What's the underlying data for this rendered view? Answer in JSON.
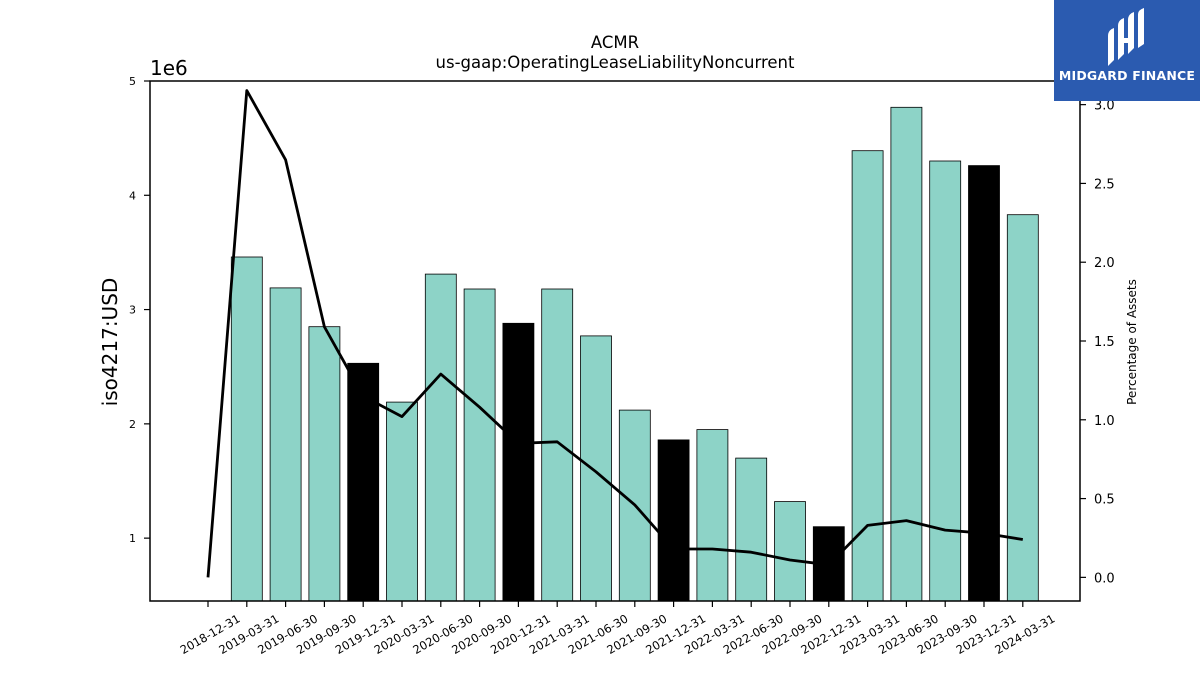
{
  "chart_data": {
    "type": "bar",
    "title": "ACMR",
    "subtitle": "us-gaap:OperatingLeaseLiabilityNoncurrent",
    "ylabel": "iso4217:USD",
    "y_offset_label": "1e6",
    "y2label": "Percentage of Assets",
    "categories": [
      "2018-12-31",
      "2019-03-31",
      "2019-06-30",
      "2019-09-30",
      "2019-12-31",
      "2020-03-31",
      "2020-06-30",
      "2020-09-30",
      "2020-12-31",
      "2021-03-31",
      "2021-06-30",
      "2021-09-30",
      "2021-12-31",
      "2022-03-31",
      "2022-06-30",
      "2022-09-30",
      "2022-12-31",
      "2023-03-31",
      "2023-06-30",
      "2023-09-30",
      "2023-12-31",
      "2024-03-31"
    ],
    "series": [
      {
        "values": [
          null,
          3.46,
          3.19,
          2.85,
          2.53,
          2.19,
          3.31,
          3.18,
          2.88,
          3.18,
          2.77,
          2.12,
          1.86,
          1.95,
          1.7,
          1.32,
          1.1,
          4.39,
          4.77,
          4.3,
          4.26,
          3.83
        ],
        "highlight": [
          false,
          false,
          false,
          false,
          true,
          false,
          false,
          false,
          true,
          false,
          false,
          false,
          true,
          false,
          false,
          false,
          true,
          false,
          false,
          false,
          true,
          false
        ],
        "axis": "left",
        "unit_multiplier": 1000000
      },
      {
        "type": "line",
        "axis": "right",
        "values": [
          0.0,
          3.09,
          2.65,
          1.59,
          1.15,
          1.02,
          1.29,
          1.08,
          0.85,
          0.86,
          0.67,
          0.46,
          0.18,
          0.18,
          0.16,
          0.11,
          0.08,
          0.33,
          0.36,
          0.3,
          0.28,
          0.24
        ]
      }
    ],
    "ylim": [
      0.45,
      5.0
    ],
    "y2lim": [
      -0.15,
      3.15
    ],
    "yticks": [
      1,
      2,
      3,
      4,
      5
    ],
    "y2ticks": [
      "0.0",
      "0.5",
      "1.0",
      "1.5",
      "2.0",
      "2.5",
      "3.0"
    ],
    "grid": false
  },
  "colors": {
    "bar": "#8dd3c7",
    "bar_highlight": "#000000",
    "line": "#000000",
    "logo_bg": "#2b5bb0"
  },
  "logo": {
    "text": "MIDGARD FINANCE"
  }
}
